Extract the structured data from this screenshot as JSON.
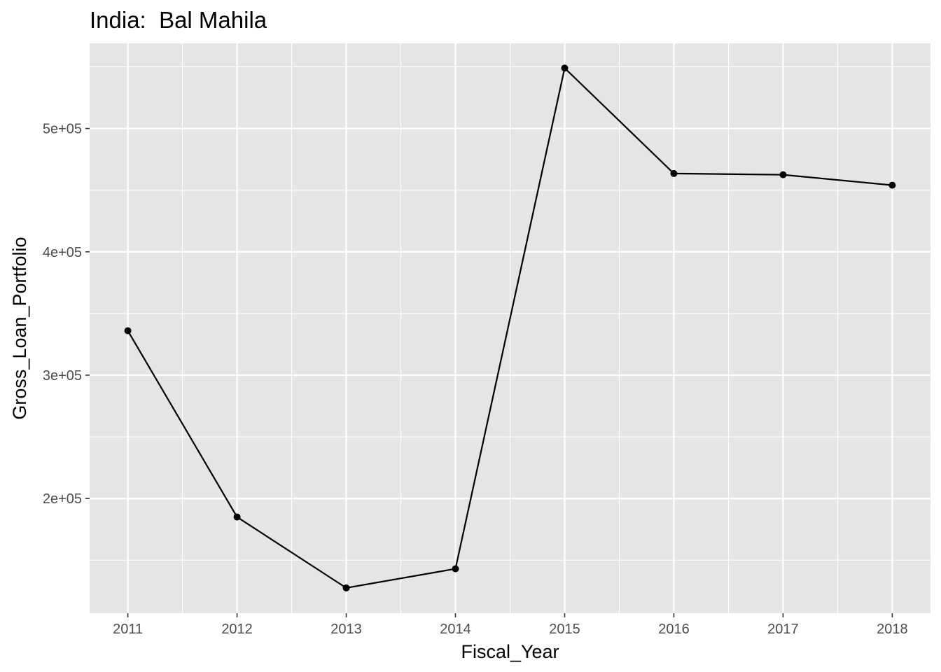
{
  "chart_data": {
    "type": "line",
    "title": "India:  Bal Mahila",
    "xlabel": "Fiscal_Year",
    "ylabel": "Gross_Loan_Portfolio",
    "x": [
      2011,
      2012,
      2013,
      2014,
      2015,
      2016,
      2017,
      2018
    ],
    "series": [
      {
        "values": [
          336000,
          185000,
          127500,
          143000,
          549000,
          463500,
          462500,
          454000
        ]
      }
    ],
    "xlim": [
      2010.65,
      2018.35
    ],
    "ylim": [
      107000,
      569000
    ],
    "yticks": [
      200000,
      300000,
      400000,
      500000
    ],
    "ytick_labels": [
      "2e+05",
      "3e+05",
      "4e+05",
      "5e+05"
    ],
    "xticks": [
      2011,
      2012,
      2013,
      2014,
      2015,
      2016,
      2017,
      2018
    ],
    "xtick_labels": [
      "2011",
      "2012",
      "2013",
      "2014",
      "2015",
      "2016",
      "2017",
      "2018"
    ],
    "grid": true,
    "legend": "none",
    "colors": {
      "panel": "#e5e5e5",
      "grid": "#ffffff",
      "line": "#000000",
      "point": "#000000"
    }
  }
}
